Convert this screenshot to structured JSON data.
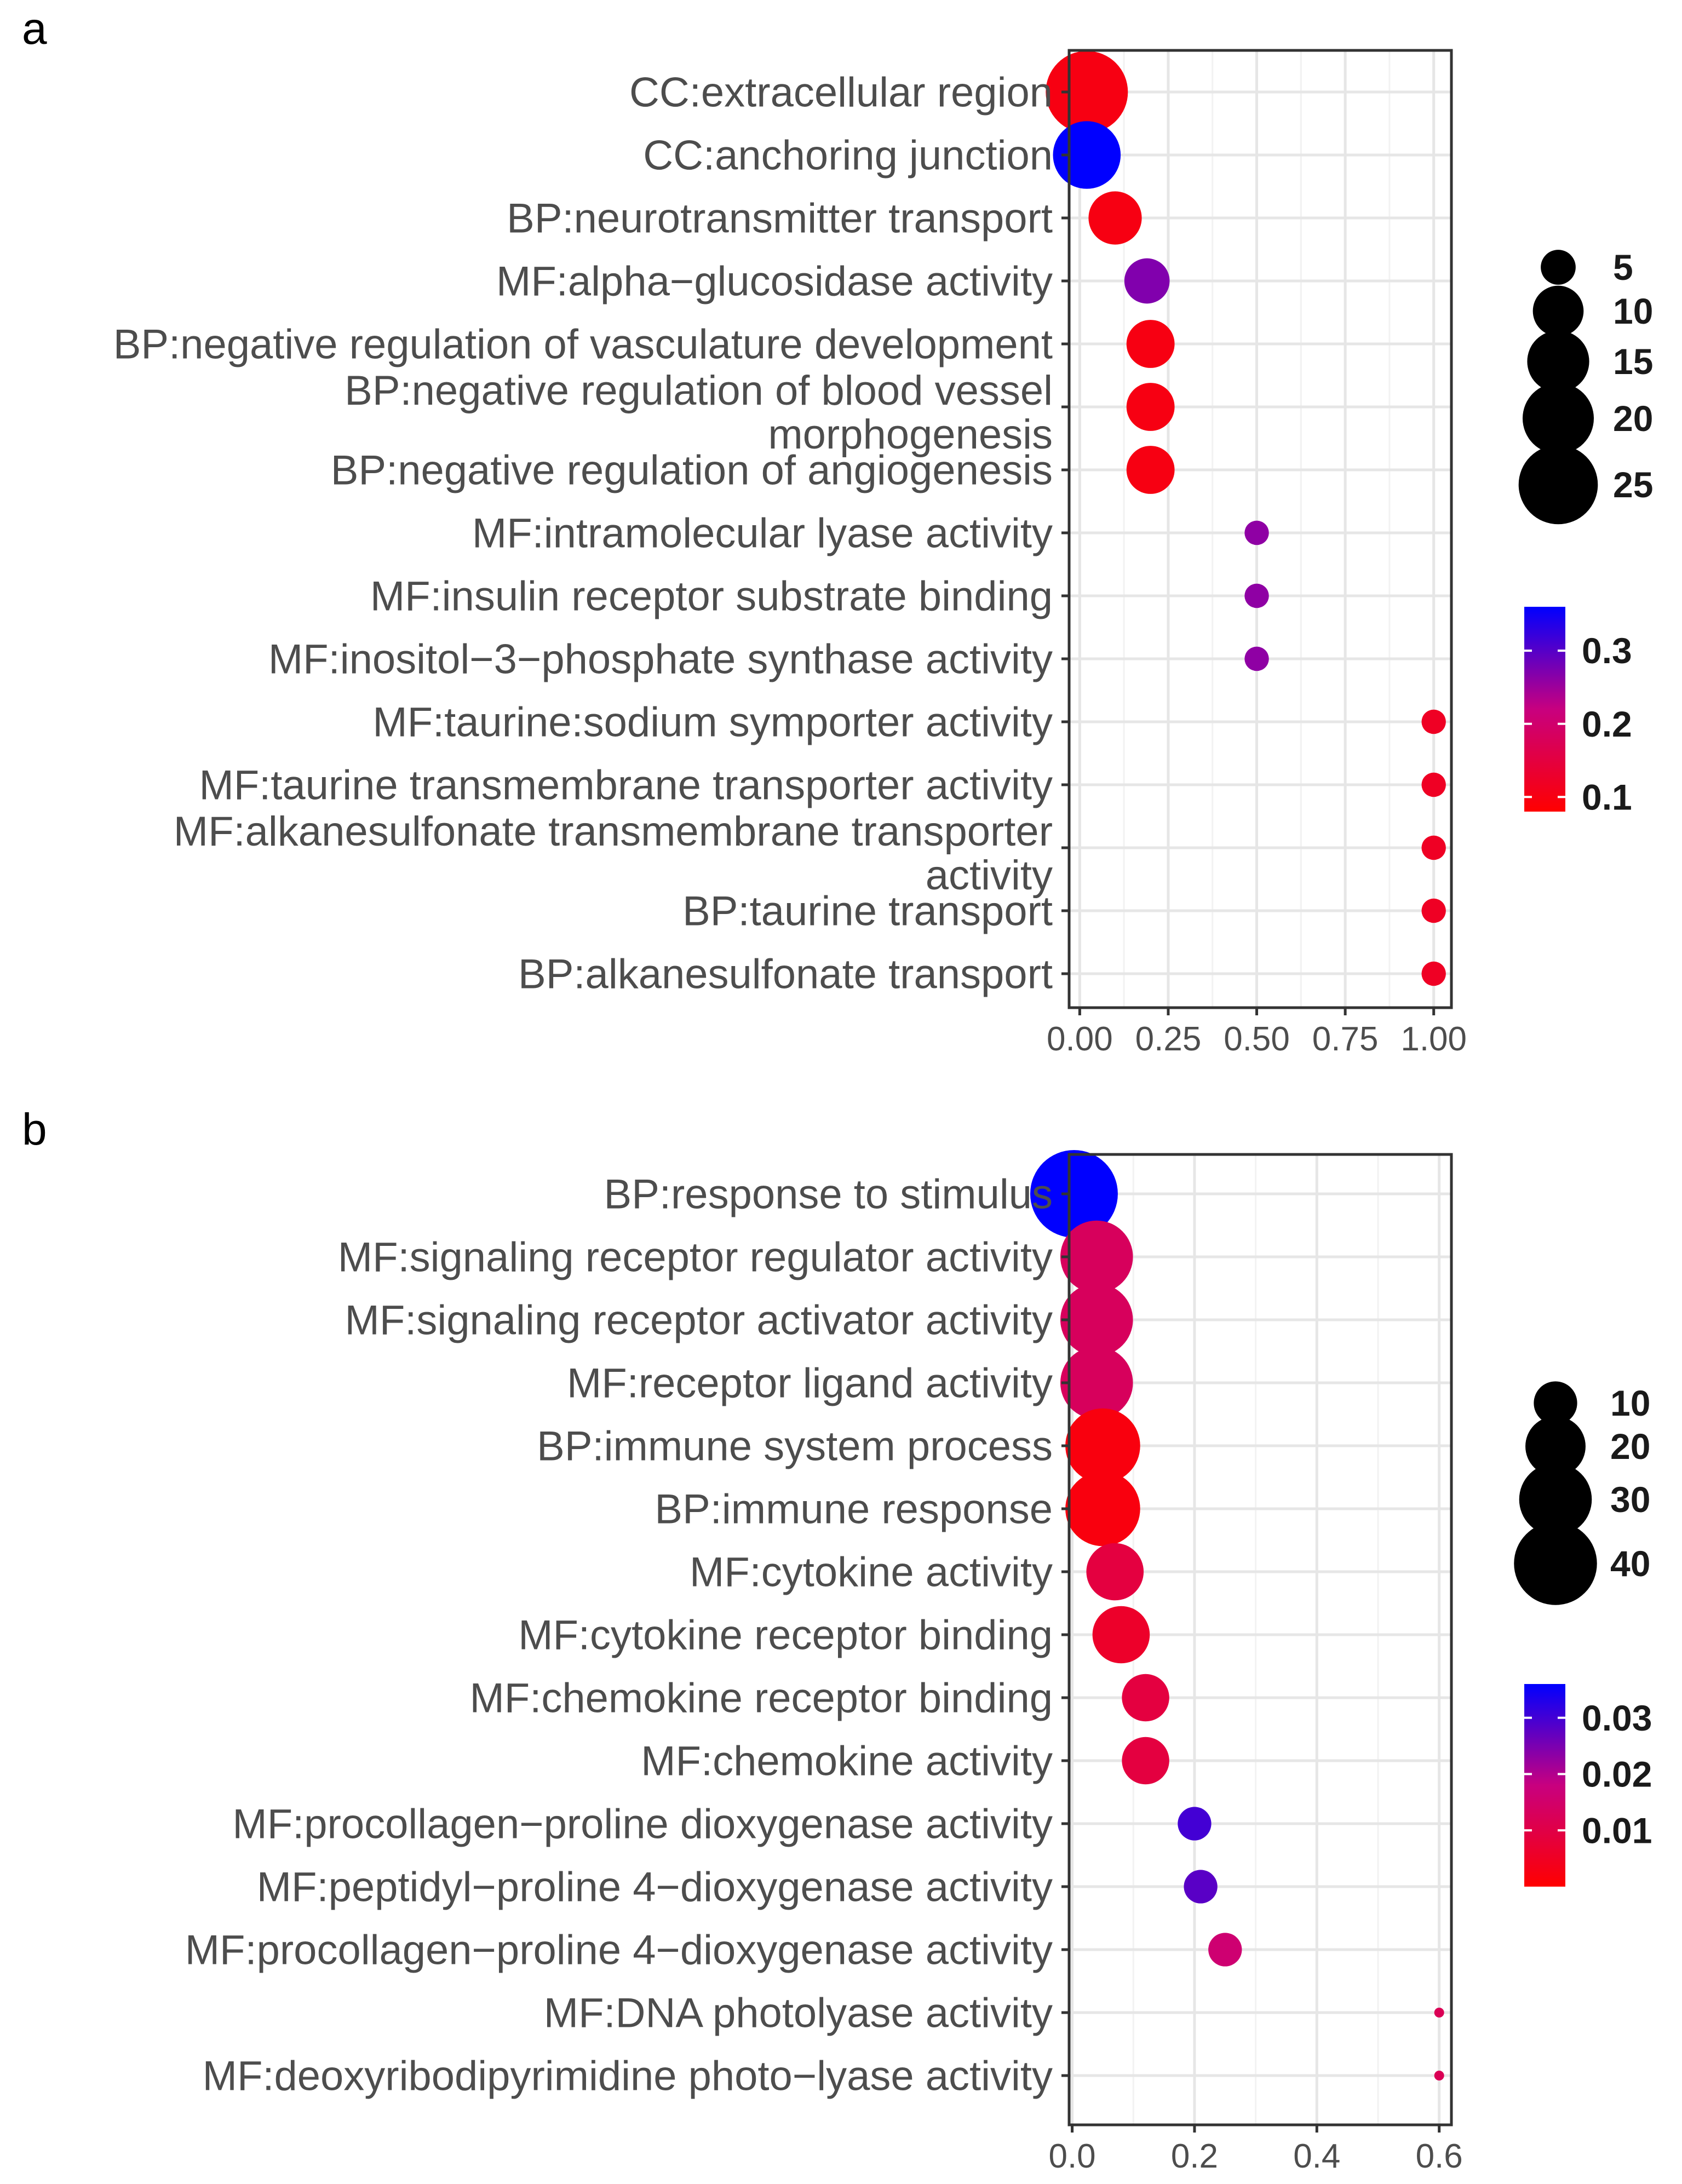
{
  "chart_data": [
    {
      "type": "scatter",
      "panel_label": "a",
      "categories": [
        "CC:extracellular region",
        "CC:anchoring junction",
        "BP:neurotransmitter transport",
        "MF:alpha−glucosidase activity",
        "BP:negative regulation of vasculature development",
        [
          "BP:negative regulation of blood vessel",
          "morphogenesis"
        ],
        "BP:negative regulation of angiogenesis",
        "MF:intramolecular lyase activity",
        "MF:insulin receptor substrate binding",
        "MF:inositol−3−phosphate synthase activity",
        "MF:taurine:sodium symporter activity",
        "MF:taurine transmembrane transporter activity",
        [
          "MF:alkanesulfonate transmembrane transporter",
          "activity"
        ],
        "BP:taurine transport",
        "BP:alkanesulfonate transport"
      ],
      "x": [
        0.02,
        0.02,
        0.1,
        0.19,
        0.2,
        0.2,
        0.2,
        0.5,
        0.5,
        0.5,
        1.0,
        1.0,
        1.0,
        1.0,
        1.0
      ],
      "size": [
        27,
        18,
        11,
        8,
        9,
        9,
        9,
        3,
        3,
        3,
        3,
        3,
        3,
        3,
        3
      ],
      "color_value": [
        0.1,
        0.38,
        0.1,
        0.27,
        0.1,
        0.1,
        0.1,
        0.26,
        0.26,
        0.26,
        0.12,
        0.12,
        0.12,
        0.12,
        0.12
      ],
      "xlim": [
        -0.03,
        1.05
      ],
      "xticks": [
        0,
        0.25,
        0.5,
        0.75,
        1.0
      ],
      "xtick_labels": [
        "0.00",
        "0.25",
        "0.50",
        "0.75",
        "1.00"
      ],
      "grid": true,
      "size_legend": {
        "values": [
          5,
          10,
          15,
          20,
          25
        ],
        "labels": [
          "5",
          "10",
          "15",
          "20",
          "25"
        ]
      },
      "color_legend": {
        "min": 0.08,
        "max": 0.36,
        "ticks": [
          0.3,
          0.2,
          0.1
        ],
        "tick_labels": [
          "0.3",
          "0.2",
          "0.1"
        ]
      }
    },
    {
      "type": "scatter",
      "panel_label": "b",
      "categories": [
        "BP:response to stimulus",
        "MF:signaling receptor regulator activity",
        "MF:signaling receptor activator activity",
        "MF:receptor ligand activity",
        "BP:immune system process",
        "BP:immune response",
        "MF:cytokine activity",
        "MF:cytokine receptor binding",
        "MF:chemokine receptor binding",
        "MF:chemokine activity",
        "MF:procollagen−proline dioxygenase activity",
        "MF:peptidyl−proline 4−dioxygenase activity",
        "MF:procollagen−proline 4−dioxygenase activity",
        "MF:DNA photolyase activity",
        "MF:deoxyribodipyrimidine photo−lyase activity"
      ],
      "x": [
        0.003,
        0.04,
        0.04,
        0.04,
        0.05,
        0.05,
        0.07,
        0.08,
        0.12,
        0.12,
        0.2,
        0.21,
        0.25,
        0.6,
        0.6
      ],
      "size": [
        45,
        30,
        30,
        30,
        32,
        32,
        18,
        18,
        12,
        12,
        6,
        6,
        6,
        2,
        2
      ],
      "color_value": [
        0.038,
        0.013,
        0.013,
        0.013,
        0.002,
        0.002,
        0.009,
        0.006,
        0.009,
        0.009,
        0.03,
        0.028,
        0.016,
        0.012,
        0.012
      ],
      "xlim": [
        -0.005,
        0.62
      ],
      "xticks": [
        0,
        0.2,
        0.4,
        0.6
      ],
      "xtick_labels": [
        "0.0",
        "0.2",
        "0.4",
        "0.6"
      ],
      "grid": true,
      "size_legend": {
        "values": [
          10,
          20,
          30,
          40
        ],
        "labels": [
          "10",
          "20",
          "30",
          "40"
        ]
      },
      "color_legend": {
        "min": 0.0,
        "max": 0.036,
        "ticks": [
          0.03,
          0.02,
          0.01
        ],
        "tick_labels": [
          "0.03",
          "0.02",
          "0.01"
        ]
      }
    }
  ]
}
